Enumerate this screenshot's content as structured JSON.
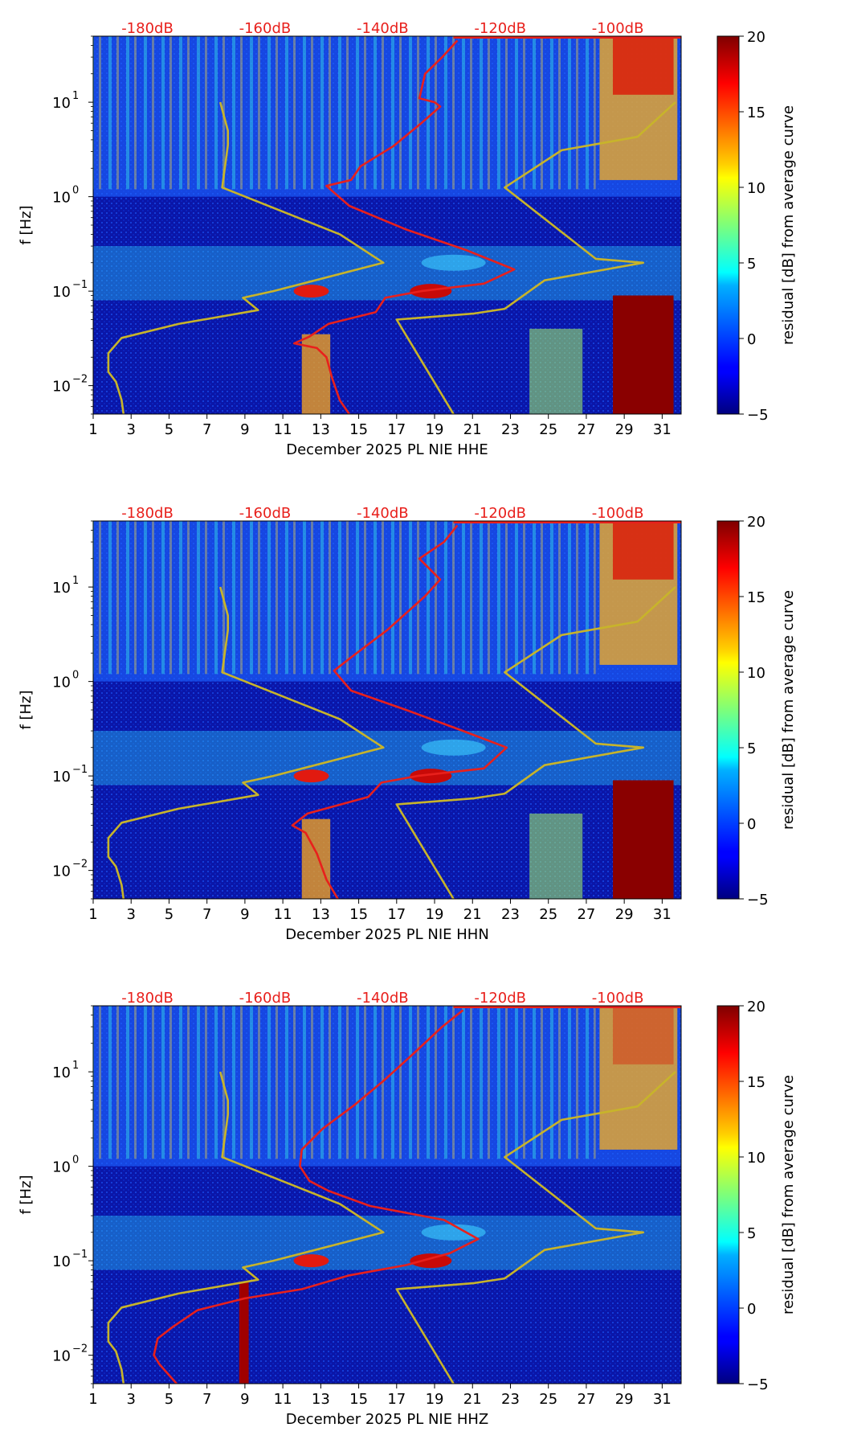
{
  "colors": {
    "noise_line": "#c8b42a",
    "mean_line": "#e8201c",
    "db_scale_text": "#e8201c",
    "axis": "#000000"
  },
  "colorbar": {
    "label": "residual [dB] from average curve",
    "ticks": [
      "20",
      "15",
      "10",
      "5",
      "0",
      "−5"
    ],
    "tick_values": [
      20,
      15,
      10,
      5,
      0,
      -5
    ],
    "range": [
      -5,
      20
    ],
    "colormap": "jet"
  },
  "chart_data": [
    {
      "type": "heatmap",
      "title": "",
      "xlabel": "December 2025 PL NIE  HHE",
      "ylabel": "f [Hz]",
      "x_range": [
        1,
        32
      ],
      "y_range": [
        0.005,
        50
      ],
      "y_scale": "log",
      "x_ticks": [
        "1",
        "3",
        "5",
        "7",
        "9",
        "11",
        "13",
        "15",
        "17",
        "19",
        "21",
        "23",
        "25",
        "27",
        "29",
        "31"
      ],
      "x_tick_values": [
        1,
        3,
        5,
        7,
        9,
        11,
        13,
        15,
        17,
        19,
        21,
        23,
        25,
        27,
        29,
        31
      ],
      "y_ticks": [
        {
          "base": "10",
          "exp": "1",
          "value": 10
        },
        {
          "base": "10",
          "exp": "0",
          "value": 1
        },
        {
          "base": "10",
          "exp": "−1",
          "value": 0.1
        },
        {
          "base": "10",
          "exp": "−2",
          "value": 0.01
        }
      ],
      "db_scale_labels": [
        "-180dB",
        "-160dB",
        "-140dB",
        "-120dB",
        "-100dB"
      ],
      "db_scale_positions": [
        4.1,
        10.3,
        16.5,
        22.7,
        28.9
      ],
      "series": [
        {
          "name": "noise model",
          "color": "#c8b42a",
          "points": [
            [
              2.6,
              0.005
            ],
            [
              2.5,
              0.007
            ],
            [
              2.2,
              0.011
            ],
            [
              1.8,
              0.014
            ],
            [
              1.8,
              0.022
            ],
            [
              2.5,
              0.032
            ],
            [
              5.5,
              0.045
            ],
            [
              9.7,
              0.063
            ],
            [
              8.9,
              0.085
            ],
            [
              10.5,
              0.1
            ],
            [
              16.3,
              0.2
            ],
            [
              14.0,
              0.4
            ],
            [
              7.8,
              1.25
            ],
            [
              8.1,
              3.5
            ],
            [
              8.1,
              5
            ],
            [
              7.7,
              10
            ]
          ]
        },
        {
          "name": "noise model high",
          "color": "#c8b42a",
          "points": [
            [
              20.0,
              0.005
            ],
            [
              17.0,
              0.05
            ],
            [
              21.1,
              0.058
            ],
            [
              22.7,
              0.065
            ],
            [
              24.8,
              0.13
            ],
            [
              30.0,
              0.2
            ],
            [
              27.5,
              0.22
            ],
            [
              22.7,
              1.25
            ],
            [
              25.7,
              3.1
            ],
            [
              29.7,
              4.3
            ],
            [
              31.7,
              10
            ]
          ]
        },
        {
          "name": "mean level",
          "color": "#e8201c",
          "points": [
            [
              14.5,
              0.005
            ],
            [
              14.0,
              0.007
            ],
            [
              13.6,
              0.012
            ],
            [
              13.3,
              0.02
            ],
            [
              12.8,
              0.025
            ],
            [
              11.6,
              0.028
            ],
            [
              12.4,
              0.033
            ],
            [
              13.4,
              0.045
            ],
            [
              15.9,
              0.06
            ],
            [
              16.4,
              0.085
            ],
            [
              18.3,
              0.1
            ],
            [
              21.6,
              0.12
            ],
            [
              23.2,
              0.17
            ],
            [
              20.7,
              0.27
            ],
            [
              17.5,
              0.45
            ],
            [
              14.5,
              0.8
            ],
            [
              13.3,
              1.3
            ],
            [
              14.6,
              1.5
            ],
            [
              15.1,
              2.1
            ],
            [
              16.8,
              3.4
            ],
            [
              18.3,
              6
            ],
            [
              19.3,
              9
            ],
            [
              19.0,
              10
            ],
            [
              18.2,
              11
            ],
            [
              18.5,
              20
            ],
            [
              19.4,
              30
            ],
            [
              20.2,
              45
            ]
          ]
        }
      ]
    },
    {
      "type": "heatmap",
      "title": "",
      "xlabel": "December 2025 PL NIE  HHN",
      "ylabel": "f [Hz]",
      "x_range": [
        1,
        32
      ],
      "y_range": [
        0.005,
        50
      ],
      "y_scale": "log",
      "x_ticks": [
        "1",
        "3",
        "5",
        "7",
        "9",
        "11",
        "13",
        "15",
        "17",
        "19",
        "21",
        "23",
        "25",
        "27",
        "29",
        "31"
      ],
      "x_tick_values": [
        1,
        3,
        5,
        7,
        9,
        11,
        13,
        15,
        17,
        19,
        21,
        23,
        25,
        27,
        29,
        31
      ],
      "y_ticks": [
        {
          "base": "10",
          "exp": "1",
          "value": 10
        },
        {
          "base": "10",
          "exp": "0",
          "value": 1
        },
        {
          "base": "10",
          "exp": "−1",
          "value": 0.1
        },
        {
          "base": "10",
          "exp": "−2",
          "value": 0.01
        }
      ],
      "db_scale_labels": [
        "-180dB",
        "-160dB",
        "-140dB",
        "-120dB",
        "-100dB"
      ],
      "db_scale_positions": [
        4.1,
        10.3,
        16.5,
        22.7,
        28.9
      ],
      "series": [
        {
          "name": "noise model",
          "color": "#c8b42a",
          "points": [
            [
              2.6,
              0.005
            ],
            [
              2.5,
              0.007
            ],
            [
              2.2,
              0.011
            ],
            [
              1.8,
              0.014
            ],
            [
              1.8,
              0.022
            ],
            [
              2.5,
              0.032
            ],
            [
              5.5,
              0.045
            ],
            [
              9.7,
              0.063
            ],
            [
              8.9,
              0.085
            ],
            [
              10.5,
              0.1
            ],
            [
              16.3,
              0.2
            ],
            [
              14.0,
              0.4
            ],
            [
              7.8,
              1.25
            ],
            [
              8.1,
              3.5
            ],
            [
              8.1,
              5
            ],
            [
              7.7,
              10
            ]
          ]
        },
        {
          "name": "noise model high",
          "color": "#c8b42a",
          "points": [
            [
              20.0,
              0.005
            ],
            [
              17.0,
              0.05
            ],
            [
              21.1,
              0.058
            ],
            [
              22.7,
              0.065
            ],
            [
              24.8,
              0.13
            ],
            [
              30.0,
              0.2
            ],
            [
              27.5,
              0.22
            ],
            [
              22.7,
              1.25
            ],
            [
              25.7,
              3.1
            ],
            [
              29.7,
              4.3
            ],
            [
              31.7,
              10
            ]
          ]
        },
        {
          "name": "mean level",
          "color": "#e8201c",
          "points": [
            [
              13.9,
              0.005
            ],
            [
              13.3,
              0.008
            ],
            [
              12.8,
              0.015
            ],
            [
              12.2,
              0.025
            ],
            [
              11.5,
              0.03
            ],
            [
              12.3,
              0.04
            ],
            [
              15.5,
              0.06
            ],
            [
              16.2,
              0.085
            ],
            [
              18.1,
              0.1
            ],
            [
              21.6,
              0.12
            ],
            [
              22.8,
              0.2
            ],
            [
              20.5,
              0.3
            ],
            [
              17.5,
              0.5
            ],
            [
              14.6,
              0.8
            ],
            [
              13.7,
              1.3
            ],
            [
              14.6,
              1.8
            ],
            [
              16.5,
              3.5
            ],
            [
              18.5,
              8
            ],
            [
              19.3,
              12
            ],
            [
              18.2,
              20
            ],
            [
              19.5,
              30
            ],
            [
              20.2,
              45
            ]
          ]
        }
      ]
    },
    {
      "type": "heatmap",
      "title": "",
      "xlabel": "December 2025 PL NIE  HHZ",
      "ylabel": "f [Hz]",
      "x_range": [
        1,
        32
      ],
      "y_range": [
        0.005,
        50
      ],
      "y_scale": "log",
      "x_ticks": [
        "1",
        "3",
        "5",
        "7",
        "9",
        "11",
        "13",
        "15",
        "17",
        "19",
        "21",
        "23",
        "25",
        "27",
        "29",
        "31"
      ],
      "x_tick_values": [
        1,
        3,
        5,
        7,
        9,
        11,
        13,
        15,
        17,
        19,
        21,
        23,
        25,
        27,
        29,
        31
      ],
      "y_ticks": [
        {
          "base": "10",
          "exp": "1",
          "value": 10
        },
        {
          "base": "10",
          "exp": "0",
          "value": 1
        },
        {
          "base": "10",
          "exp": "−1",
          "value": 0.1
        },
        {
          "base": "10",
          "exp": "−2",
          "value": 0.01
        }
      ],
      "db_scale_labels": [
        "-180dB",
        "-160dB",
        "-140dB",
        "-120dB",
        "-100dB"
      ],
      "db_scale_positions": [
        4.1,
        10.3,
        16.5,
        22.7,
        28.9
      ],
      "series": [
        {
          "name": "noise model",
          "color": "#c8b42a",
          "points": [
            [
              2.6,
              0.005
            ],
            [
              2.5,
              0.007
            ],
            [
              2.2,
              0.011
            ],
            [
              1.8,
              0.014
            ],
            [
              1.8,
              0.022
            ],
            [
              2.5,
              0.032
            ],
            [
              5.5,
              0.045
            ],
            [
              9.7,
              0.063
            ],
            [
              8.9,
              0.085
            ],
            [
              10.5,
              0.1
            ],
            [
              16.3,
              0.2
            ],
            [
              14.0,
              0.4
            ],
            [
              7.8,
              1.25
            ],
            [
              8.1,
              3.5
            ],
            [
              8.1,
              5
            ],
            [
              7.7,
              10
            ]
          ]
        },
        {
          "name": "noise model high",
          "color": "#c8b42a",
          "points": [
            [
              20.0,
              0.005
            ],
            [
              17.0,
              0.05
            ],
            [
              21.1,
              0.058
            ],
            [
              22.7,
              0.065
            ],
            [
              24.8,
              0.13
            ],
            [
              30.0,
              0.2
            ],
            [
              27.5,
              0.22
            ],
            [
              22.7,
              1.25
            ],
            [
              25.7,
              3.1
            ],
            [
              29.7,
              4.3
            ],
            [
              31.7,
              10
            ]
          ]
        },
        {
          "name": "mean level",
          "color": "#e8201c",
          "points": [
            [
              5.4,
              0.005
            ],
            [
              4.5,
              0.008
            ],
            [
              4.2,
              0.01
            ],
            [
              4.4,
              0.015
            ],
            [
              5.2,
              0.02
            ],
            [
              6.5,
              0.03
            ],
            [
              9.0,
              0.04
            ],
            [
              12.0,
              0.05
            ],
            [
              14.5,
              0.07
            ],
            [
              17.5,
              0.09
            ],
            [
              19.8,
              0.12
            ],
            [
              21.3,
              0.17
            ],
            [
              19.5,
              0.27
            ],
            [
              15.6,
              0.38
            ],
            [
              13.4,
              0.55
            ],
            [
              12.4,
              0.7
            ],
            [
              11.9,
              1.0
            ],
            [
              12.0,
              1.5
            ],
            [
              13.1,
              2.5
            ],
            [
              14.8,
              4.5
            ],
            [
              16.3,
              8
            ],
            [
              17.8,
              15
            ],
            [
              19.4,
              30
            ],
            [
              20.5,
              45
            ]
          ]
        }
      ]
    }
  ]
}
